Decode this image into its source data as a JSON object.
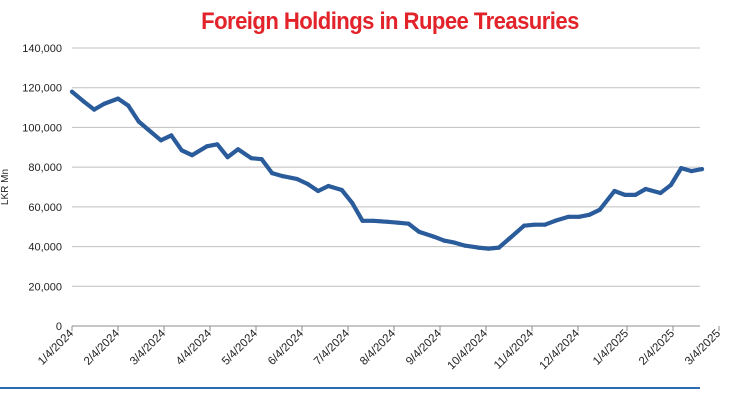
{
  "colors": {
    "title": "#e2232a",
    "line": "#2a5b9a",
    "grid": "#bfbfbf",
    "bottom_rule": "#2d6bb3"
  },
  "chart_data": {
    "type": "line",
    "title": "Foreign Holdings in Rupee Treasuries",
    "ylabel": "LKR Mn",
    "xlabel": "",
    "ylim": [
      0,
      140000
    ],
    "yticks": [
      0,
      20000,
      40000,
      60000,
      80000,
      100000,
      120000,
      140000
    ],
    "ytick_labels": [
      "0",
      "20,000",
      "40,000",
      "60,000",
      "80,000",
      "100,000",
      "120,000",
      "140,000"
    ],
    "xtick_labels": [
      "1/4/2024",
      "2/4/2024",
      "3/4/2024",
      "4/4/2024",
      "5/4/2024",
      "6/4/2024",
      "7/4/2024",
      "8/4/2024",
      "9/4/2024",
      "10/4/2024",
      "11/4/2024",
      "12/4/2024",
      "1/4/2025",
      "2/4/2025",
      "3/4/2025"
    ],
    "grid": true,
    "legend": "none",
    "series": [
      {
        "x": [
          "2024-01-04",
          "2024-01-12",
          "2024-01-19",
          "2024-01-26",
          "2024-02-04",
          "2024-02-11",
          "2024-02-18",
          "2024-02-25",
          "2024-03-04",
          "2024-03-11",
          "2024-03-18",
          "2024-03-25",
          "2024-04-04",
          "2024-04-11",
          "2024-04-18",
          "2024-04-25",
          "2024-05-04",
          "2024-05-11",
          "2024-05-18",
          "2024-05-25",
          "2024-06-04",
          "2024-06-11",
          "2024-06-18",
          "2024-06-25",
          "2024-07-04",
          "2024-07-11",
          "2024-07-18",
          "2024-07-25",
          "2024-08-04",
          "2024-08-11",
          "2024-08-18",
          "2024-08-25",
          "2024-09-04",
          "2024-09-11",
          "2024-09-18",
          "2024-09-25",
          "2024-10-04",
          "2024-10-11",
          "2024-10-18",
          "2024-10-25",
          "2024-11-04",
          "2024-11-11",
          "2024-11-18",
          "2024-11-25",
          "2024-12-04",
          "2024-12-11",
          "2024-12-18",
          "2024-12-25",
          "2025-01-04",
          "2025-01-11",
          "2025-01-18",
          "2025-01-25",
          "2025-02-04",
          "2025-02-11",
          "2025-02-18",
          "2025-02-25",
          "2025-03-04"
        ],
        "values": [
          118000,
          113000,
          109000,
          112000,
          114500,
          111000,
          103000,
          98500,
          93500,
          96000,
          88500,
          86000,
          90500,
          91500,
          85000,
          89000,
          84500,
          84000,
          77000,
          75500,
          74000,
          71500,
          68000,
          70500,
          68500,
          62000,
          53000,
          53000,
          52500,
          52000,
          51500,
          47500,
          45000,
          43000,
          42000,
          40500,
          39500,
          39000,
          39500,
          44000,
          50500,
          51000,
          51000,
          53000,
          55000,
          55000,
          56000,
          58500,
          68000,
          66000,
          66000,
          69000,
          67000,
          71000,
          79500,
          78000,
          79000
        ]
      }
    ]
  }
}
